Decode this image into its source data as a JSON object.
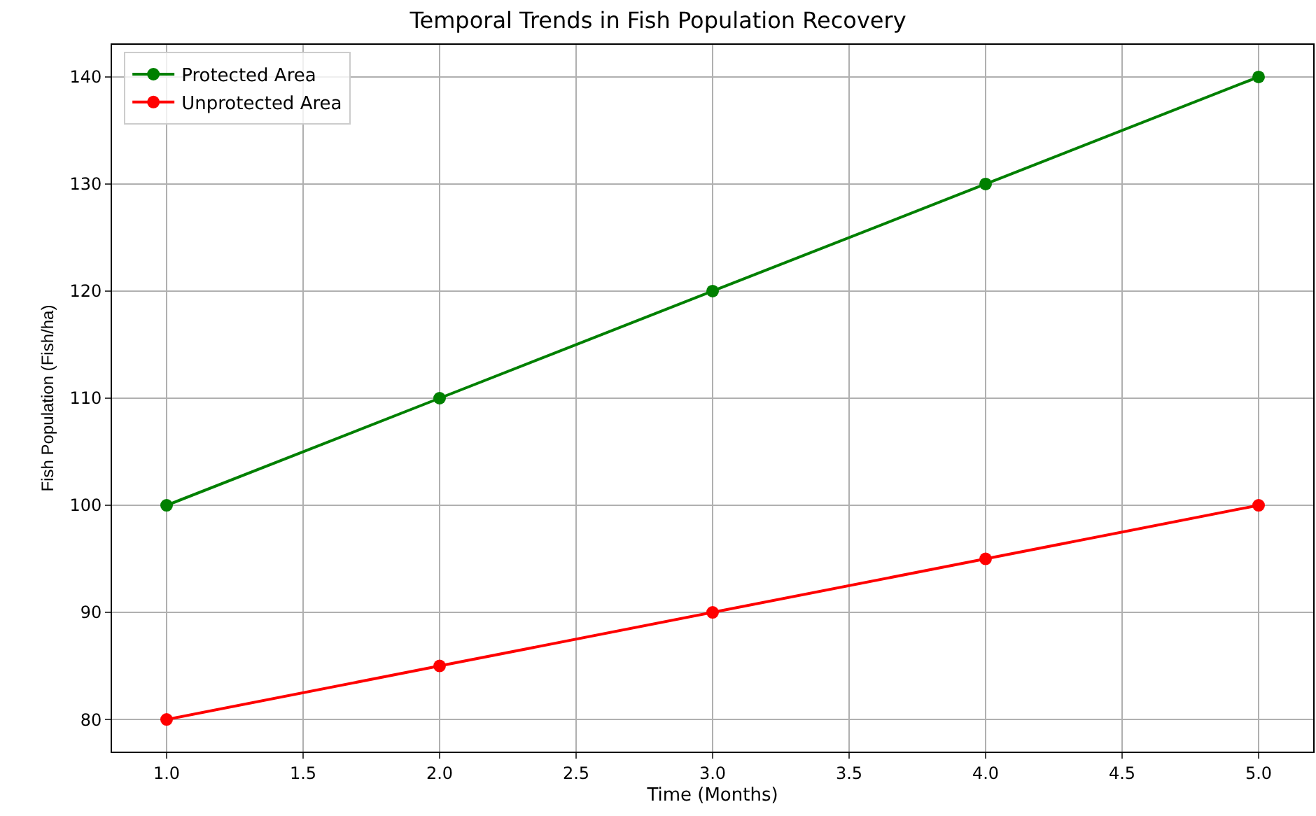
{
  "chart_data": {
    "type": "line",
    "title": "Temporal Trends in Fish Population Recovery",
    "xlabel": "Time (Months)",
    "ylabel": "Fish Population (Fish/ha)",
    "x": [
      1,
      2,
      3,
      4,
      5
    ],
    "series": [
      {
        "name": "Protected Area",
        "color": "#008000",
        "values": [
          100,
          110,
          120,
          130,
          140
        ]
      },
      {
        "name": "Unprotected Area",
        "color": "#ff0000",
        "values": [
          80,
          85,
          90,
          95,
          100
        ]
      }
    ],
    "xlim": [
      0.8,
      5.2
    ],
    "xticks": [
      {
        "value": 1,
        "label": "1.0"
      },
      {
        "value": 1.5,
        "label": "1.5"
      },
      {
        "value": 2,
        "label": "2.0"
      },
      {
        "value": 2.5,
        "label": "2.5"
      },
      {
        "value": 3,
        "label": "3.0"
      },
      {
        "value": 3.5,
        "label": "3.5"
      },
      {
        "value": 4,
        "label": "4.0"
      },
      {
        "value": 4.5,
        "label": "4.5"
      },
      {
        "value": 5,
        "label": "5.0"
      }
    ],
    "ylim": [
      77,
      143
    ],
    "yticks": [
      80,
      90,
      100,
      110,
      120,
      130,
      140
    ],
    "grid": true,
    "legend": "top left",
    "marker": "circle",
    "line_style": "solid"
  }
}
